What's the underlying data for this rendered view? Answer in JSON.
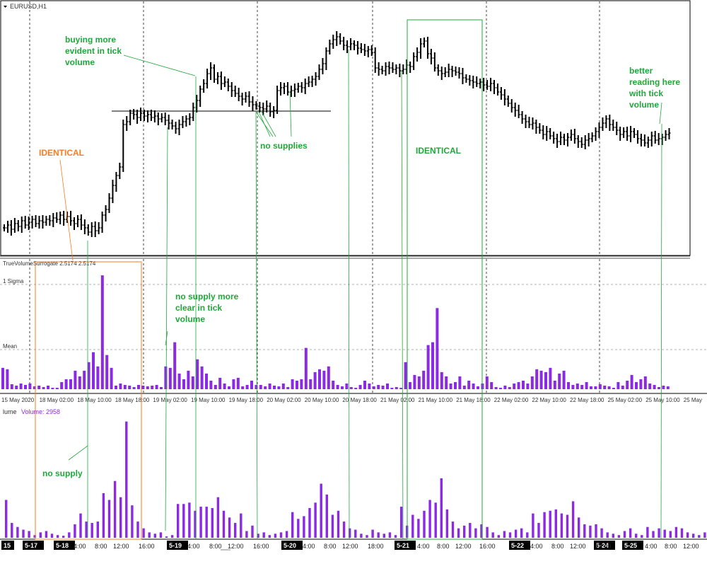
{
  "window": {
    "title": "EURUSD,H1"
  },
  "colors": {
    "candles": "#000000",
    "volume": "#8a2be2",
    "annotation": "#1fa83a",
    "identical_left": "#ff7a1f",
    "grid": "#555555"
  },
  "chart_data": [
    {
      "type": "bar",
      "title": "EURUSD,H1",
      "xlabel": "",
      "ylabel": "",
      "x_tick_labels": [
        "15 May 2020",
        "18 May 02:00",
        "18 May 10:00",
        "18 May 18:00",
        "19 May 02:00",
        "19 May 10:00",
        "19 May 18:00",
        "20 May 02:00",
        "20 May 10:00",
        "20 May 18:00",
        "21 May 02:00",
        "21 May 10:00",
        "21 May 18:00",
        "22 May 02:00",
        "22 May 10:00",
        "22 May 18:00",
        "25 May 02:00",
        "25 May 10:00",
        "25 May"
      ],
      "series": [
        {
          "values_close": [
            322,
            318,
            324,
            316,
            320,
            312,
            318,
            314,
            310,
            316,
            312,
            314,
            310,
            312,
            308,
            310,
            304,
            310,
            306,
            312,
            316,
            310,
            318,
            322,
            328,
            320,
            326,
            322,
            304,
            296,
            280,
            262,
            248,
            236,
            176,
            172,
            160,
            162,
            166,
            160,
            164,
            162,
            166,
            164,
            168,
            166,
            170,
            174,
            178,
            182,
            176,
            172,
            168,
            166,
            152,
            142,
            126,
            118,
            104,
            96,
            112,
            108,
            118,
            116,
            122,
            128,
            132,
            136,
            140,
            136,
            144,
            148,
            150,
            152,
            154,
            150,
            158,
            156,
            128,
            124,
            122,
            130,
            128,
            126,
            122,
            124,
            118,
            116,
            112,
            108,
            98,
            90,
            72,
            62,
            56,
            52,
            58,
            64,
            66,
            62,
            64,
            68,
            70,
            72,
            70,
            74,
            96,
            98,
            100,
            94,
            96,
            98,
            96,
            100,
            98,
            92,
            94,
            80,
            74,
            62,
            58,
            76,
            82,
            96,
            100,
            104,
            102,
            98,
            100,
            102,
            104,
            110,
            112,
            114,
            116,
            118,
            116,
            120,
            122,
            118,
            124,
            130,
            134,
            140,
            146,
            152,
            156,
            162,
            168,
            172,
            176,
            174,
            180,
            184,
            190,
            186,
            192,
            196,
            200,
            194,
            198,
            194,
            190,
            196,
            200,
            204,
            198,
            196,
            192,
            186,
            180,
            174,
            168,
            176,
            180,
            184,
            190,
            186,
            192,
            186,
            190,
            196,
            198,
            202,
            198,
            192,
            198,
            196,
            194,
            190,
            188
          ]
        }
      ]
    },
    {
      "type": "bar",
      "title": "TrueVolumeSurrogate 2.5174 2.5174",
      "levels": [
        "1 Sigma",
        "Mean"
      ],
      "x_tick_labels": [
        "15 May 2020",
        "18 May 02:00",
        "18 May 10:00",
        "18 May 18:00",
        "19 May 02:00",
        "19 May 10:00",
        "19 May 18:00",
        "20 May 02:00",
        "20 May 10:00",
        "20 May 18:00",
        "21 May 02:00",
        "21 May 10:00",
        "21 May 18:00",
        "22 May 02:00",
        "22 May 10:00",
        "22 May 18:00",
        "25 May 02:00",
        "25 May 10:00",
        "25 May"
      ],
      "values": [
        30,
        28,
        7,
        5,
        8,
        6,
        8,
        4,
        5,
        3,
        5,
        2,
        2,
        10,
        14,
        14,
        26,
        18,
        26,
        38,
        52,
        32,
        160,
        48,
        30,
        5,
        8,
        6,
        5,
        3,
        6,
        5,
        4,
        5,
        6,
        3,
        32,
        30,
        66,
        22,
        14,
        26,
        18,
        42,
        32,
        22,
        12,
        6,
        16,
        8,
        4,
        14,
        16,
        4,
        6,
        12,
        6,
        6,
        4,
        8,
        5,
        4,
        8,
        3,
        14,
        12,
        14,
        58,
        14,
        24,
        28,
        26,
        32,
        12,
        6,
        4,
        8,
        3,
        2,
        6,
        12,
        8,
        4,
        6,
        5,
        8,
        2,
        3,
        2,
        38,
        10,
        20,
        18,
        26,
        62,
        66,
        114,
        24,
        18,
        8,
        10,
        18,
        5,
        12,
        8,
        4,
        8,
        18,
        10,
        3,
        2,
        5,
        3,
        8,
        10,
        12,
        8,
        18,
        28,
        26,
        24,
        30,
        12,
        22,
        26,
        10,
        6,
        8,
        6,
        10,
        4,
        4,
        7,
        5,
        4,
        2,
        10,
        5,
        12,
        20,
        10,
        14,
        18,
        8,
        6,
        3,
        5,
        4
      ],
      "ylim": [
        0,
        175
      ]
    },
    {
      "type": "bar",
      "title": "Volume: 2958",
      "panel_label": "lume",
      "value_label": "Volume: 2958",
      "session_labels": [
        "15",
        "5-17",
        "5-18",
        "5-19",
        "5-20",
        "5-21",
        "5-22",
        "5-24",
        "5-25"
      ],
      "x_tick_labels": [
        "4:00",
        "8:00",
        "12:00",
        "16:00",
        "4:00",
        "8:00",
        "12:00",
        "16:00",
        "4:00",
        "8:00",
        "12:00",
        "18:00",
        "4:00",
        "8:00",
        "12:00",
        "16:00",
        "4:00",
        "8:00",
        "12:00",
        "16:00",
        "4:00",
        "8:00",
        "12:00"
      ],
      "values": [
        56,
        22,
        16,
        12,
        10,
        4,
        8,
        10,
        6,
        4,
        3,
        8,
        20,
        36,
        24,
        22,
        24,
        66,
        56,
        84,
        60,
        172,
        48,
        24,
        14,
        8,
        6,
        8,
        2,
        4,
        50,
        50,
        52,
        40,
        46,
        46,
        44,
        60,
        40,
        30,
        22,
        36,
        10,
        18,
        6,
        8,
        4,
        6,
        8,
        10,
        38,
        28,
        32,
        44,
        52,
        80,
        64,
        34,
        40,
        24,
        14,
        12,
        6,
        4,
        12,
        8,
        6,
        8,
        4,
        46,
        18,
        34,
        28,
        40,
        56,
        52,
        88,
        42,
        24,
        14,
        18,
        22,
        14,
        20,
        16,
        8,
        4,
        10,
        8,
        12,
        14,
        8,
        36,
        22,
        38,
        40,
        42,
        36,
        34,
        54,
        30,
        20,
        18,
        20,
        14,
        8,
        6,
        4,
        10,
        14,
        6,
        4,
        16,
        10,
        14,
        12,
        10,
        16,
        14,
        8,
        6,
        4,
        8
      ],
      "ylim": [
        0,
        180
      ]
    }
  ],
  "annotations": {
    "buying_more": [
      "buying more",
      "evident in tick",
      "volume"
    ],
    "identical_left": "IDENTICAL",
    "no_supplies": "no supplies",
    "identical_right": "IDENTICAL",
    "better_reading": [
      "better",
      "reading here",
      "with tick",
      "volume"
    ],
    "no_supply_clear": [
      "no supply more",
      "clear in tick",
      "volume"
    ],
    "no_supply": "no supply"
  }
}
